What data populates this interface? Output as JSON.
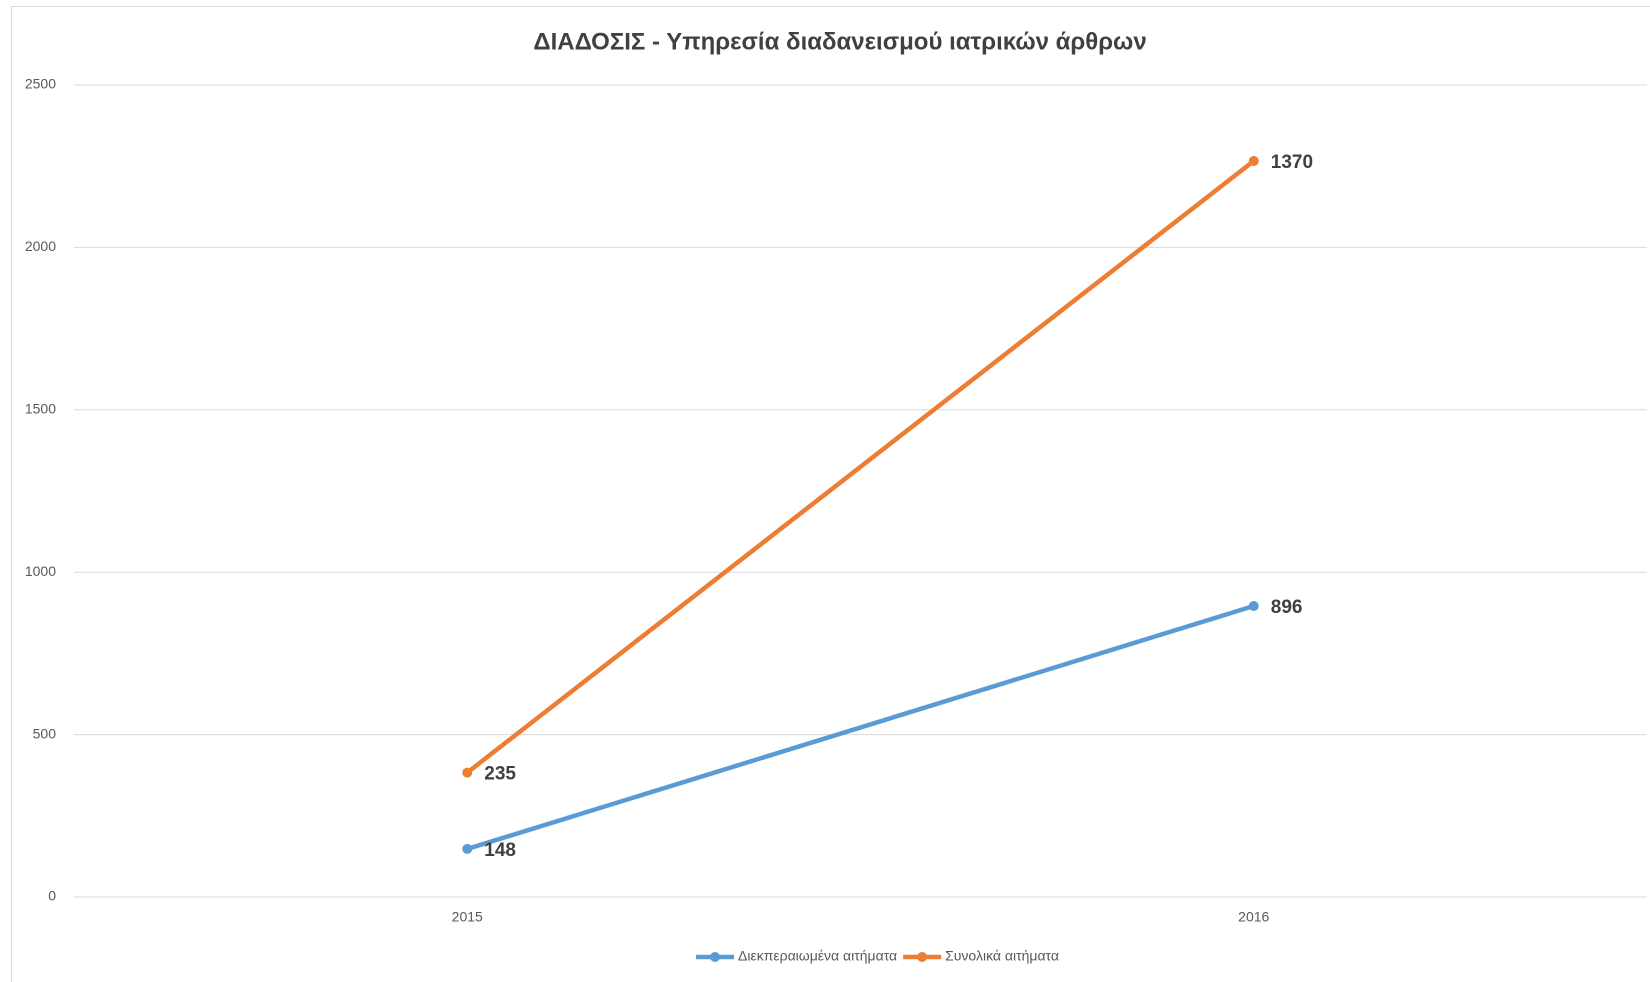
{
  "chart_data": {
    "type": "line",
    "stacked": true,
    "title": "ΔΙΑΔΟΣΙΣ - Υπηρεσία διαδανεισμού ιατρικών άρθρων",
    "categories": [
      "2015",
      "2016"
    ],
    "series": [
      {
        "name": "Διεκπεραιωμένα αιτήματα",
        "color": "#5b9bd5",
        "values": [
          148,
          896
        ]
      },
      {
        "name": "Συνολικά αιτήματα",
        "color": "#ed7d31",
        "values": [
          235,
          1370
        ]
      }
    ],
    "ylim": [
      0,
      2500
    ],
    "yticks": [
      0,
      500,
      1000,
      1500,
      2000,
      2500
    ],
    "grid": true,
    "legend": "bottom",
    "data_labels": true
  }
}
